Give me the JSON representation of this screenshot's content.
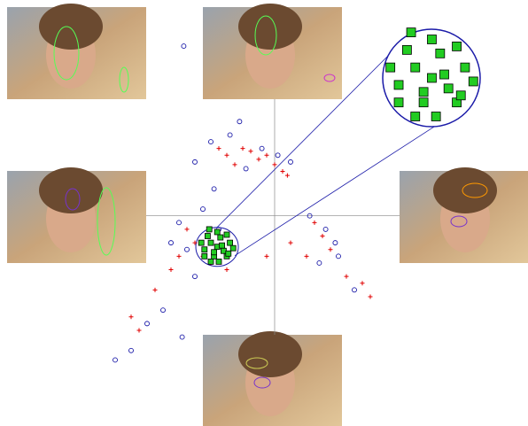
{
  "chart_data": {
    "type": "scatter",
    "xlim": [
      -1,
      1
    ],
    "ylim": [
      -1.1,
      1.3
    ],
    "series": [
      {
        "color": "#e00000",
        "marker": "plus",
        "x": [
          -0.3,
          -0.2,
          -0.1,
          0.0,
          -0.25,
          -0.15,
          0.05,
          -0.35,
          -0.05,
          0.08,
          -0.5,
          -0.45,
          -0.55,
          -0.4,
          -0.6,
          -0.3,
          -0.65,
          -0.75,
          0.25,
          0.3,
          0.35,
          0.45,
          0.55,
          0.6,
          0.2,
          -0.85,
          -0.9,
          -0.05,
          0.1
        ],
        "values": [
          0.45,
          0.5,
          0.42,
          0.38,
          0.38,
          0.48,
          0.33,
          0.5,
          0.45,
          0.3,
          -0.2,
          -0.3,
          -0.1,
          -0.35,
          -0.3,
          -0.4,
          -0.4,
          -0.55,
          -0.05,
          -0.15,
          -0.25,
          -0.45,
          -0.5,
          -0.6,
          -0.3,
          -0.85,
          -0.75,
          -0.3,
          -0.2
        ]
      },
      {
        "color": "#1a1aa8",
        "marker": "circle",
        "x": [
          -0.4,
          -0.28,
          -0.18,
          -0.08,
          0.02,
          -0.22,
          -0.5,
          0.1,
          -0.35,
          -0.55,
          -0.45,
          -0.3,
          -0.6,
          -0.5,
          -0.38,
          -0.65,
          0.22,
          0.32,
          0.4,
          0.28,
          0.5,
          0.38,
          -0.9,
          -1.0,
          -0.8,
          -0.7,
          -0.58,
          -0.57
        ],
        "values": [
          0.55,
          0.6,
          0.35,
          0.5,
          0.45,
          0.7,
          0.4,
          0.4,
          -0.1,
          -0.25,
          0.05,
          -0.3,
          -0.05,
          -0.45,
          0.2,
          -0.2,
          0.0,
          -0.1,
          -0.3,
          -0.35,
          -0.55,
          -0.2,
          -1.0,
          -1.07,
          -0.8,
          -0.7,
          -0.9,
          1.26
        ]
      },
      {
        "color": "#22cc22",
        "marker": "square",
        "x": [
          -0.36,
          -0.4,
          -0.32,
          -0.44,
          -0.28,
          -0.38,
          -0.34,
          -0.42,
          -0.3,
          -0.36,
          -0.46,
          -0.26,
          -0.4,
          -0.33,
          -0.38,
          -0.44,
          -0.3,
          -0.35,
          -0.41,
          -0.29
        ],
        "values": [
          -0.23,
          -0.2,
          -0.26,
          -0.25,
          -0.2,
          -0.3,
          -0.16,
          -0.15,
          -0.3,
          -0.12,
          -0.2,
          -0.24,
          -0.34,
          -0.22,
          -0.27,
          -0.3,
          -0.14,
          -0.34,
          -0.1,
          -0.28
        ]
      }
    ]
  }
}
